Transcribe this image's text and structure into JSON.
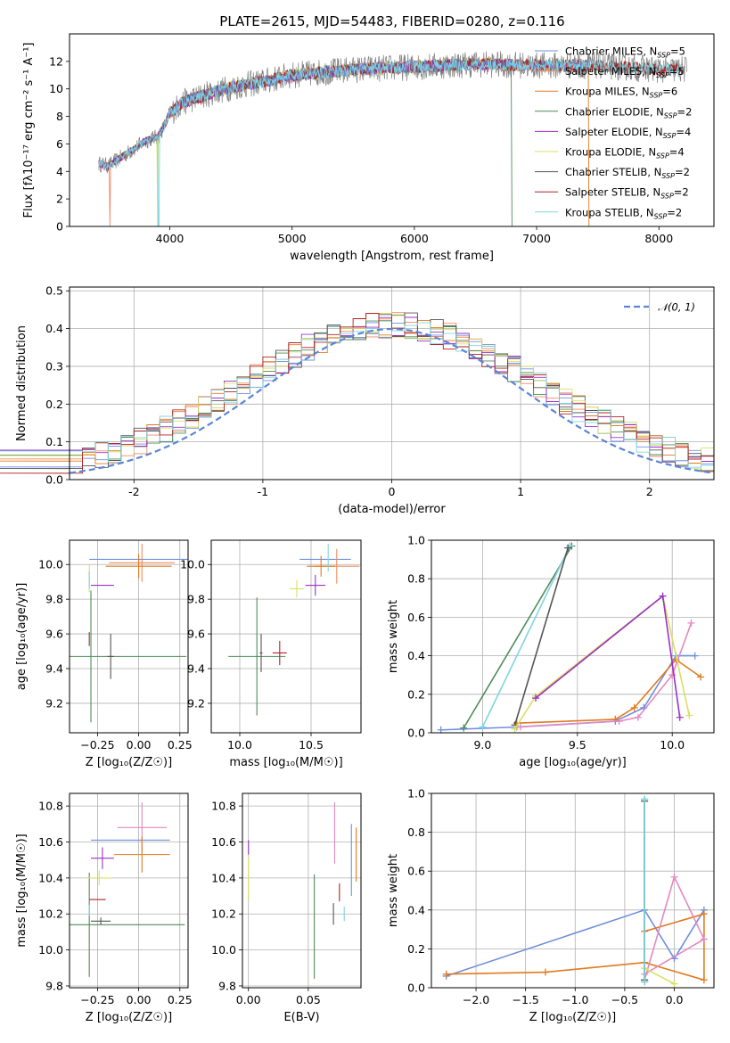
{
  "figure_title": "PLATE=2615, MJD=54483, FIBERID=0280, z=0.116",
  "colors": {
    "Chabrier MILES": "#6f8fe0",
    "Salpeter MILES": "#ef8a62",
    "Kroupa MILES": "#e07a1f",
    "Chabrier ELODIE": "#4f8c5a",
    "Salpeter ELODIE": "#9b30c8",
    "Kroupa ELODIE": "#d8e060",
    "Chabrier STELIB": "#555555",
    "Salpeter STELIB": "#b22222",
    "Kroupa STELIB": "#80d4e0",
    "pink": "#e488c0",
    "normal": "#5b86d6"
  },
  "chart_data": [
    {
      "id": "spectrum",
      "type": "line",
      "xlabel": "wavelength [Angstrom, rest frame]",
      "ylabel": "Flux [fλ10⁻¹⁷ erg cm⁻² s⁻¹ A⁻¹]",
      "xlim": [
        3180,
        8450
      ],
      "ylim": [
        0,
        14
      ],
      "xticks": [
        4000,
        5000,
        6000,
        7000,
        8000
      ],
      "yticks": [
        0,
        2,
        4,
        6,
        8,
        10,
        12
      ],
      "grid": false,
      "legend_position": "right",
      "continuum": {
        "x": [
          3400,
          3500,
          3600,
          3700,
          3800,
          3850,
          3900,
          3950,
          4000,
          4100,
          4300,
          4500,
          4800,
          5000,
          5500,
          6000,
          6500,
          7000,
          7500,
          8000,
          8200
        ],
        "y": [
          4.6,
          4.4,
          5.0,
          5.6,
          6.2,
          6.4,
          6.5,
          7.2,
          8.2,
          9.0,
          9.6,
          10.1,
          10.6,
          11.0,
          11.4,
          11.6,
          11.8,
          11.7,
          11.7,
          11.4,
          11.4
        ]
      },
      "legend": [
        {
          "name": "Chabrier MILES",
          "label": "Chabrier MILES, N",
          "n": "5"
        },
        {
          "name": "Salpeter MILES",
          "label": "Salpeter MILES, N",
          "n": "5"
        },
        {
          "name": "Kroupa MILES",
          "label": "Kroupa MILES, N",
          "n": "6"
        },
        {
          "name": "Chabrier ELODIE",
          "label": "Chabrier ELODIE, N",
          "n": "2"
        },
        {
          "name": "Salpeter ELODIE",
          "label": "Salpeter ELODIE, N",
          "n": "4"
        },
        {
          "name": "Kroupa ELODIE",
          "label": "Kroupa ELODIE, N",
          "n": "4"
        },
        {
          "name": "Chabrier STELIB",
          "label": "Chabrier STELIB, N",
          "n": "2"
        },
        {
          "name": "Salpeter STELIB",
          "label": "Salpeter STELIB, N",
          "n": "2"
        },
        {
          "name": "Kroupa STELIB",
          "label": "Kroupa STELIB, N",
          "n": "2"
        }
      ],
      "legend_sub": "SSP"
    },
    {
      "id": "residuals",
      "type": "histogram",
      "xlabel": "(data-model)/error",
      "ylabel": "Normed distribution",
      "xlim": [
        -2.5,
        2.5
      ],
      "ylim": [
        0,
        0.51
      ],
      "xticks": [
        -2,
        -1,
        0,
        1,
        2
      ],
      "yticks": [
        0.0,
        0.1,
        0.2,
        0.3,
        0.4,
        0.5
      ],
      "grid": true,
      "legend_position": "top-right",
      "normal_label": "𝒩(0, 1)",
      "bin_width": 0.1,
      "base_curve_peak": 0.4
    },
    {
      "id": "age_vs_Z",
      "type": "errorbar",
      "xlabel": "Z [log₁₀(Z/Z☉)]",
      "ylabel": "age  [log₁₀(age/yr)]",
      "xlim": [
        -0.42,
        0.3
      ],
      "ylim": [
        9.03,
        10.14
      ],
      "xticks": [
        -0.25,
        0.0,
        0.25
      ],
      "xticklabels": [
        "−0.25",
        "0.00",
        "0.25"
      ],
      "yticks": [
        9.2,
        9.4,
        9.6,
        9.8,
        10.0
      ],
      "grid": true,
      "points": [
        {
          "s": "Chabrier MILES",
          "x": 0.0,
          "y": 10.03,
          "xerr": 0.3,
          "yerr": 0.0
        },
        {
          "s": "Salpeter MILES",
          "x": 0.02,
          "y": 10.01,
          "xerr": 0.2,
          "yerr": 0.11
        },
        {
          "s": "Kroupa MILES",
          "x": 0.0,
          "y": 9.99,
          "xerr": 0.2,
          "yerr": 0.07
        },
        {
          "s": "Chabrier ELODIE",
          "x": -0.29,
          "y": 9.47,
          "xerr": 0.58,
          "yerr": 0.38
        },
        {
          "s": "Salpeter ELODIE",
          "x": -0.22,
          "y": 9.88,
          "xerr": 0.07,
          "yerr": 0.0
        },
        {
          "s": "Kroupa ELODIE",
          "x": -0.3,
          "y": 9.92,
          "xerr": 0.0,
          "yerr": 0.08
        },
        {
          "s": "Chabrier STELIB",
          "x": -0.17,
          "y": 9.47,
          "xerr": 0.02,
          "yerr": 0.13
        },
        {
          "s": "Salpeter STELIB",
          "x": -0.3,
          "y": 9.57,
          "xerr": 0.0,
          "yerr": 0.04
        },
        {
          "s": "Kroupa STELIB",
          "x": -0.3,
          "y": 9.91,
          "xerr": 0.0,
          "yerr": 0.05
        }
      ]
    },
    {
      "id": "age_vs_mass",
      "type": "errorbar",
      "xlabel": "mass [log₁₀(M/M☉)]",
      "xlim": [
        9.8,
        10.85
      ],
      "ylim": [
        9.03,
        10.14
      ],
      "xticks": [
        10.0,
        10.5
      ],
      "xticklabels": [
        "10.0",
        "10.5"
      ],
      "yticks": [
        9.2,
        9.4,
        9.6,
        9.8,
        10.0
      ],
      "grid": true,
      "points": [
        {
          "s": "Chabrier MILES",
          "x": 10.6,
          "y": 10.03,
          "xerr": 0.18,
          "yerr": 0.0
        },
        {
          "s": "Salpeter MILES",
          "x": 10.68,
          "y": 9.99,
          "xerr": 0.16,
          "yerr": 0.1
        },
        {
          "s": "Kroupa MILES",
          "x": 10.57,
          "y": 9.99,
          "xerr": 0.1,
          "yerr": 0.06
        },
        {
          "s": "Chabrier ELODIE",
          "x": 10.12,
          "y": 9.47,
          "xerr": 0.2,
          "yerr": 0.34
        },
        {
          "s": "Salpeter ELODIE",
          "x": 10.53,
          "y": 9.88,
          "xerr": 0.07,
          "yerr": 0.06
        },
        {
          "s": "Kroupa ELODIE",
          "x": 10.4,
          "y": 9.86,
          "xerr": 0.05,
          "yerr": 0.05
        },
        {
          "s": "Chabrier STELIB",
          "x": 10.15,
          "y": 9.49,
          "xerr": 0.01,
          "yerr": 0.11
        },
        {
          "s": "Salpeter STELIB",
          "x": 10.28,
          "y": 9.49,
          "xerr": 0.05,
          "yerr": 0.07
        },
        {
          "s": "Kroupa STELIB",
          "x": 10.62,
          "y": 10.04,
          "xerr": 0.0,
          "yerr": 0.08
        }
      ]
    },
    {
      "id": "weight_vs_age",
      "type": "line",
      "xlabel": "age  [log₁₀(age/yr)]",
      "ylabel": "mass weight",
      "xlim": [
        8.73,
        10.22
      ],
      "ylim": [
        0,
        1
      ],
      "xticks": [
        9.0,
        9.5,
        10.0
      ],
      "xticklabels": [
        "9.0",
        "9.5",
        "10.0"
      ],
      "yticks": [
        0.0,
        0.2,
        0.4,
        0.6,
        0.8,
        1.0
      ],
      "grid": true,
      "series": [
        {
          "s": "Chabrier MILES",
          "x": [
            8.78,
            9.18,
            9.7,
            9.85,
            10.02,
            10.12
          ],
          "y": [
            0.015,
            0.03,
            0.06,
            0.13,
            0.4,
            0.4
          ]
        },
        {
          "s": "Kroupa MILES",
          "x": [
            9.18,
            9.7,
            9.8,
            10.02,
            10.15
          ],
          "y": [
            0.05,
            0.07,
            0.13,
            0.38,
            0.29
          ]
        },
        {
          "s": "pink",
          "x": [
            9.2,
            9.72,
            9.82,
            10.0,
            10.1
          ],
          "y": [
            0.03,
            0.06,
            0.08,
            0.3,
            0.57
          ]
        },
        {
          "s": "Chabrier ELODIE",
          "x": [
            8.9,
            9.47
          ],
          "y": [
            0.025,
            0.97
          ]
        },
        {
          "s": "Kroupa STELIB",
          "x": [
            9.0,
            9.46
          ],
          "y": [
            0.03,
            0.97
          ]
        },
        {
          "s": "Chabrier STELIB",
          "x": [
            9.17,
            9.45
          ],
          "y": [
            0.04,
            0.96
          ]
        },
        {
          "s": "Kroupa ELODIE",
          "x": [
            9.17,
            9.28,
            9.95,
            10.09
          ],
          "y": [
            0.02,
            0.19,
            0.71,
            0.09
          ]
        },
        {
          "s": "Salpeter ELODIE",
          "x": [
            9.28,
            9.95,
            10.04
          ],
          "y": [
            0.18,
            0.71,
            0.08
          ]
        }
      ]
    },
    {
      "id": "mass_vs_Z",
      "type": "errorbar",
      "xlabel": "Z [log₁₀(Z/Z☉)]",
      "ylabel": "mass [log₁₀(M/M☉)]",
      "xlim": [
        -0.42,
        0.3
      ],
      "ylim": [
        9.79,
        10.87
      ],
      "xticks": [
        -0.25,
        0.0,
        0.25
      ],
      "xticklabels": [
        "−0.25",
        "0.00",
        "0.25"
      ],
      "yticks": [
        9.8,
        10.0,
        10.2,
        10.4,
        10.6,
        10.8
      ],
      "grid": true,
      "points": [
        {
          "s": "Chabrier MILES",
          "x": -0.05,
          "y": 10.61,
          "xerr": 0.24,
          "yerr": 0.0
        },
        {
          "s": "pink",
          "x": 0.02,
          "y": 10.68,
          "xerr": 0.15,
          "yerr": 0.14
        },
        {
          "s": "Kroupa MILES",
          "x": 0.02,
          "y": 10.53,
          "xerr": 0.17,
          "yerr": 0.1
        },
        {
          "s": "Chabrier ELODIE",
          "x": -0.3,
          "y": 10.14,
          "xerr": 0.58,
          "yerr": 0.29
        },
        {
          "s": "Salpeter ELODIE",
          "x": -0.22,
          "y": 10.51,
          "xerr": 0.07,
          "yerr": 0.06
        },
        {
          "s": "Kroupa ELODIE",
          "x": -0.24,
          "y": 10.4,
          "xerr": 0.08,
          "yerr": 0.04
        },
        {
          "s": "Chabrier STELIB",
          "x": -0.23,
          "y": 10.16,
          "xerr": 0.06,
          "yerr": 0.02
        },
        {
          "s": "Salpeter STELIB",
          "x": -0.25,
          "y": 10.28,
          "xerr": 0.05,
          "yerr": 0.0
        },
        {
          "s": "Kroupa STELIB",
          "x": -0.3,
          "y": 10.22,
          "xerr": 0.0,
          "yerr": 0.03
        }
      ]
    },
    {
      "id": "mass_vs_EBV",
      "type": "errorbar",
      "xlabel": "E(B-V)",
      "xlim": [
        -0.005,
        0.094
      ],
      "ylim": [
        9.79,
        10.87
      ],
      "xticks": [
        0.0,
        0.05
      ],
      "xticklabels": [
        "0.00",
        "0.05"
      ],
      "yticks": [
        9.8,
        10.0,
        10.2,
        10.4,
        10.6,
        10.8
      ],
      "grid": true,
      "points": [
        {
          "s": "Salpeter ELODIE",
          "x": 0.0,
          "y": 10.57,
          "xerr": 0,
          "yerr": 0.04
        },
        {
          "s": "Kroupa ELODIE",
          "x": 0.0,
          "y": 10.4,
          "xerr": 0,
          "yerr": 0.12
        },
        {
          "s": "Chabrier ELODIE",
          "x": 0.055,
          "y": 10.13,
          "xerr": 0,
          "yerr": 0.29
        },
        {
          "s": "pink",
          "x": 0.072,
          "y": 10.65,
          "xerr": 0,
          "yerr": 0.17
        },
        {
          "s": "Salpeter STELIB",
          "x": 0.076,
          "y": 10.32,
          "xerr": 0,
          "yerr": 0.05
        },
        {
          "s": "Chabrier STELIB",
          "x": 0.071,
          "y": 10.2,
          "xerr": 0,
          "yerr": 0.06
        },
        {
          "s": "Kroupa STELIB",
          "x": 0.08,
          "y": 10.2,
          "xerr": 0,
          "yerr": 0.04
        },
        {
          "s": "Chabrier MILES",
          "x": 0.086,
          "y": 10.5,
          "xerr": 0,
          "yerr": 0.2
        },
        {
          "s": "Kroupa MILES",
          "x": 0.09,
          "y": 10.53,
          "xerr": 0,
          "yerr": 0.15
        }
      ]
    },
    {
      "id": "weight_vs_Z",
      "type": "line",
      "xlabel": "Z [log₁₀(Z/Z☉)]",
      "ylabel": "mass weight",
      "xlim": [
        -2.45,
        0.4
      ],
      "ylim": [
        0,
        1
      ],
      "xticks": [
        -2.0,
        -1.5,
        -1.0,
        -0.5,
        0.0
      ],
      "xticklabels": [
        "−2.0",
        "−1.5",
        "−1.0",
        "−0.5",
        "0.0"
      ],
      "yticks": [
        0.0,
        0.2,
        0.4,
        0.6,
        0.8,
        1.0
      ],
      "grid": true,
      "series": [
        {
          "s": "Chabrier MILES",
          "x": [
            -2.3,
            -0.3,
            0.0,
            0.3
          ],
          "y": [
            0.06,
            0.4,
            0.15,
            0.4
          ]
        },
        {
          "s": "Kroupa MILES",
          "x": [
            -2.3,
            -1.3,
            -0.3,
            0.3,
            0.3,
            -0.3
          ],
          "y": [
            0.07,
            0.08,
            0.13,
            0.04,
            0.38,
            0.29
          ]
        },
        {
          "s": "pink",
          "x": [
            -0.3,
            0.0,
            0.3,
            -0.3
          ],
          "y": [
            0.04,
            0.57,
            0.25,
            0.07
          ]
        },
        {
          "s": "Kroupa ELODIE",
          "x": [
            -0.3,
            0.0
          ],
          "y": [
            0.1,
            0.02
          ]
        },
        {
          "s": "Chabrier STELIB",
          "x": [
            -0.3,
            -0.3
          ],
          "y": [
            0.04,
            0.96
          ]
        },
        {
          "s": "Chabrier ELODIE",
          "x": [
            -0.3,
            -0.3
          ],
          "y": [
            0.03,
            0.97
          ]
        },
        {
          "s": "Kroupa STELIB",
          "x": [
            -0.3,
            -0.3
          ],
          "y": [
            0.03,
            0.97
          ]
        }
      ]
    }
  ]
}
